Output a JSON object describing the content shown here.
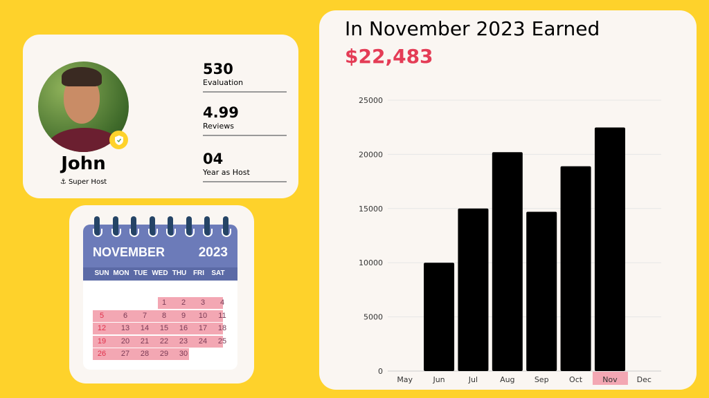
{
  "profile": {
    "name": "John",
    "role": "Super Host",
    "stats": [
      {
        "value": "530",
        "label": "Evaluation"
      },
      {
        "value": "4.99",
        "label": "Reviews"
      },
      {
        "value": "04",
        "label": "Year as Host"
      }
    ]
  },
  "calendar": {
    "month": "NOVEMBER",
    "year": "2023",
    "weekdays": [
      "SUN",
      "MON",
      "TUE",
      "WED",
      "THU",
      "FRI",
      "SAT"
    ],
    "first_weekday": 3,
    "days": 30
  },
  "earnings": {
    "title": "In November 2023 Earned",
    "total": "$22,483"
  },
  "colors": {
    "background": "#fed22b",
    "accent": "#e43c56",
    "highlight": "#f3a7b3",
    "calendar": "#6c7bb9"
  },
  "chart_data": {
    "type": "bar",
    "categories": [
      "May",
      "Jun",
      "Jul",
      "Aug",
      "Sep",
      "Oct",
      "Nov",
      "Dec"
    ],
    "values": [
      0,
      10000,
      15000,
      20200,
      14700,
      18900,
      22483,
      0
    ],
    "highlighted": "Nov",
    "yticks": [
      0,
      5000,
      10000,
      15000,
      20000,
      25000
    ],
    "ylim": [
      0,
      25000
    ],
    "grid": true
  }
}
